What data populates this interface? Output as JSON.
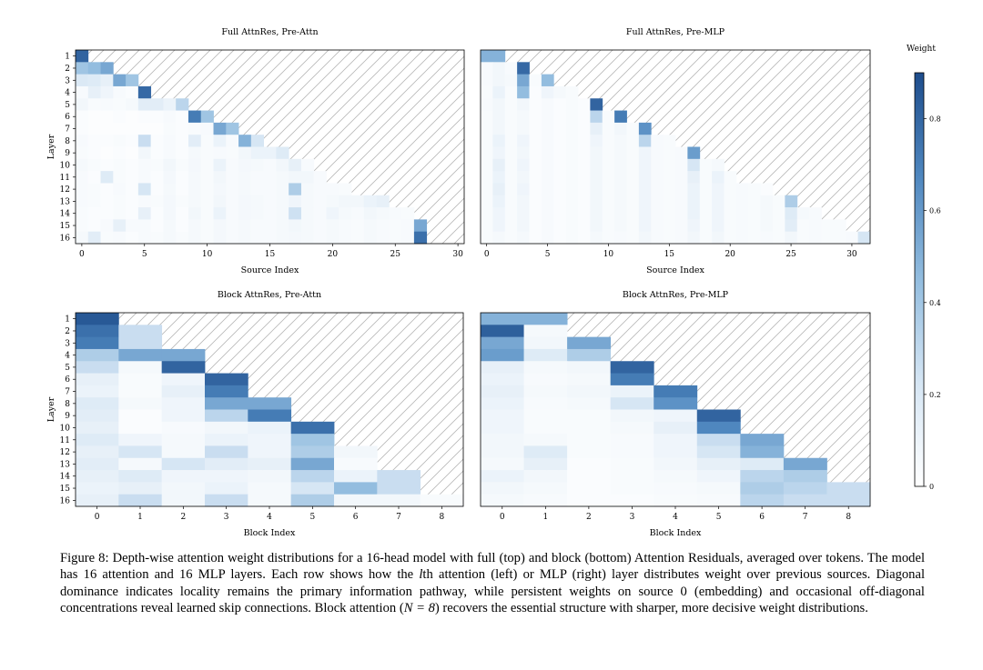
{
  "chart_data": [
    {
      "type": "heatmap",
      "title": "Full AttnRes, Pre-Attn",
      "xlabel": "Source Index",
      "ylabel": "Layer",
      "x_ticks": [
        0,
        5,
        10,
        15,
        20,
        25,
        30
      ],
      "y_ticks": [
        1,
        2,
        3,
        4,
        5,
        6,
        7,
        8,
        9,
        10,
        11,
        12,
        13,
        14,
        15,
        16
      ],
      "ncols": 31,
      "rows": [
        [
          0.9
        ],
        [
          0.45,
          0.5,
          0.6
        ],
        [
          0.22,
          0.2,
          0.15,
          0.6,
          0.45
        ],
        [
          0.05,
          0.15,
          0.1,
          0.05,
          0.03,
          0.88
        ],
        [
          0.08,
          0.04,
          0.05,
          0.04,
          0.06,
          0.18,
          0.18,
          0.12,
          0.35
        ],
        [
          0.03,
          0.02,
          0.02,
          0.03,
          0.02,
          0.03,
          0.03,
          0.05,
          0.03,
          0.8,
          0.45
        ],
        [
          0.03,
          0.02,
          0.02,
          0.02,
          0.02,
          0.02,
          0.02,
          0.04,
          0.03,
          0.04,
          0.05,
          0.6,
          0.45
        ],
        [
          0.05,
          0.03,
          0.03,
          0.04,
          0.03,
          0.3,
          0.03,
          0.05,
          0.03,
          0.18,
          0.04,
          0.12,
          0.05,
          0.55,
          0.25
        ],
        [
          0.04,
          0.03,
          0.02,
          0.03,
          0.02,
          0.08,
          0.03,
          0.05,
          0.03,
          0.06,
          0.04,
          0.05,
          0.04,
          0.08,
          0.12,
          0.12,
          0.2
        ],
        [
          0.06,
          0.04,
          0.03,
          0.04,
          0.03,
          0.05,
          0.04,
          0.08,
          0.04,
          0.07,
          0.04,
          0.12,
          0.05,
          0.07,
          0.06,
          0.05,
          0.08,
          0.15,
          0.05
        ],
        [
          0.05,
          0.03,
          0.2,
          0.04,
          0.03,
          0.05,
          0.03,
          0.07,
          0.03,
          0.06,
          0.04,
          0.08,
          0.05,
          0.06,
          0.05,
          0.05,
          0.06,
          0.08,
          0.08,
          0.05
        ],
        [
          0.05,
          0.04,
          0.03,
          0.05,
          0.03,
          0.25,
          0.03,
          0.06,
          0.03,
          0.06,
          0.04,
          0.07,
          0.05,
          0.06,
          0.05,
          0.05,
          0.06,
          0.4,
          0.06,
          0.05,
          0.05,
          0.04
        ],
        [
          0.05,
          0.04,
          0.03,
          0.04,
          0.03,
          0.05,
          0.04,
          0.07,
          0.04,
          0.06,
          0.04,
          0.08,
          0.05,
          0.07,
          0.06,
          0.05,
          0.06,
          0.1,
          0.06,
          0.05,
          0.06,
          0.08,
          0.08,
          0.12,
          0.15
        ],
        [
          0.04,
          0.03,
          0.03,
          0.04,
          0.03,
          0.15,
          0.03,
          0.07,
          0.03,
          0.08,
          0.04,
          0.12,
          0.05,
          0.07,
          0.06,
          0.05,
          0.06,
          0.28,
          0.06,
          0.05,
          0.1,
          0.06,
          0.05,
          0.08,
          0.06,
          0.05,
          0.04
        ],
        [
          0.04,
          0.03,
          0.05,
          0.15,
          0.05,
          0.05,
          0.03,
          0.06,
          0.03,
          0.06,
          0.04,
          0.07,
          0.05,
          0.06,
          0.05,
          0.05,
          0.06,
          0.08,
          0.06,
          0.05,
          0.06,
          0.05,
          0.04,
          0.06,
          0.05,
          0.04,
          0.05,
          0.6
        ],
        [
          0.06,
          0.18,
          0.04,
          0.05,
          0.03,
          0.05,
          0.04,
          0.06,
          0.04,
          0.06,
          0.04,
          0.07,
          0.05,
          0.06,
          0.05,
          0.05,
          0.06,
          0.07,
          0.06,
          0.05,
          0.06,
          0.05,
          0.04,
          0.06,
          0.05,
          0.04,
          0.05,
          0.85
        ]
      ]
    },
    {
      "type": "heatmap",
      "title": "Full AttnRes, Pre-MLP",
      "xlabel": "Source Index",
      "ylabel": "",
      "x_ticks": [
        0,
        5,
        10,
        15,
        20,
        25,
        30
      ],
      "y_ticks": [],
      "ncols": 32,
      "rows": [
        [
          0.55,
          0.55
        ],
        [
          0.05,
          0.08,
          0.05,
          0.88
        ],
        [
          0.05,
          0.08,
          0.06,
          0.6,
          0.04,
          0.5
        ],
        [
          0.04,
          0.12,
          0.04,
          0.5,
          0.03,
          0.1,
          0.06,
          0.04
        ],
        [
          0.05,
          0.08,
          0.04,
          0.08,
          0.03,
          0.05,
          0.03,
          0.04,
          0.03,
          0.9
        ],
        [
          0.04,
          0.08,
          0.04,
          0.06,
          0.03,
          0.05,
          0.03,
          0.04,
          0.03,
          0.35,
          0.04,
          0.8
        ],
        [
          0.04,
          0.08,
          0.04,
          0.06,
          0.03,
          0.05,
          0.03,
          0.04,
          0.03,
          0.15,
          0.04,
          0.08,
          0.04,
          0.7
        ],
        [
          0.04,
          0.12,
          0.04,
          0.1,
          0.03,
          0.05,
          0.03,
          0.04,
          0.03,
          0.1,
          0.04,
          0.06,
          0.04,
          0.35,
          0.05,
          0.04
        ],
        [
          0.04,
          0.1,
          0.04,
          0.08,
          0.03,
          0.05,
          0.03,
          0.04,
          0.03,
          0.08,
          0.04,
          0.06,
          0.04,
          0.1,
          0.05,
          0.04,
          0.05,
          0.65
        ],
        [
          0.04,
          0.15,
          0.04,
          0.1,
          0.03,
          0.05,
          0.03,
          0.04,
          0.03,
          0.08,
          0.04,
          0.06,
          0.04,
          0.1,
          0.05,
          0.04,
          0.05,
          0.25,
          0.04,
          0.06
        ],
        [
          0.04,
          0.12,
          0.04,
          0.08,
          0.03,
          0.05,
          0.03,
          0.04,
          0.03,
          0.08,
          0.04,
          0.06,
          0.04,
          0.1,
          0.05,
          0.04,
          0.05,
          0.15,
          0.04,
          0.12,
          0.04
        ],
        [
          0.04,
          0.15,
          0.04,
          0.1,
          0.03,
          0.05,
          0.03,
          0.04,
          0.03,
          0.08,
          0.04,
          0.06,
          0.04,
          0.1,
          0.05,
          0.04,
          0.05,
          0.12,
          0.04,
          0.1,
          0.04,
          0.05,
          0.04,
          0.03
        ],
        [
          0.04,
          0.12,
          0.04,
          0.08,
          0.03,
          0.05,
          0.03,
          0.04,
          0.03,
          0.08,
          0.04,
          0.06,
          0.04,
          0.1,
          0.05,
          0.04,
          0.05,
          0.12,
          0.04,
          0.1,
          0.04,
          0.05,
          0.04,
          0.06,
          0.04,
          0.4
        ],
        [
          0.04,
          0.1,
          0.04,
          0.08,
          0.03,
          0.05,
          0.03,
          0.04,
          0.03,
          0.08,
          0.04,
          0.06,
          0.04,
          0.1,
          0.05,
          0.04,
          0.05,
          0.12,
          0.04,
          0.1,
          0.04,
          0.05,
          0.04,
          0.06,
          0.04,
          0.2,
          0.06,
          0.05
        ],
        [
          0.04,
          0.1,
          0.04,
          0.08,
          0.03,
          0.05,
          0.03,
          0.04,
          0.03,
          0.08,
          0.04,
          0.06,
          0.04,
          0.1,
          0.05,
          0.04,
          0.05,
          0.1,
          0.04,
          0.1,
          0.04,
          0.05,
          0.04,
          0.06,
          0.04,
          0.18,
          0.04,
          0.05,
          0.04,
          0.04
        ],
        [
          0.04,
          0.06,
          0.04,
          0.06,
          0.03,
          0.05,
          0.03,
          0.04,
          0.03,
          0.06,
          0.04,
          0.05,
          0.04,
          0.08,
          0.05,
          0.04,
          0.05,
          0.08,
          0.04,
          0.08,
          0.04,
          0.05,
          0.04,
          0.05,
          0.04,
          0.08,
          0.04,
          0.05,
          0.04,
          0.04,
          0.05,
          0.25
        ]
      ]
    },
    {
      "type": "heatmap",
      "title": "Block AttnRes, Pre-Attn",
      "xlabel": "Block Index",
      "ylabel": "Layer",
      "x_ticks": [
        0,
        1,
        2,
        3,
        4,
        5,
        6,
        7,
        8
      ],
      "y_ticks": [
        1,
        2,
        3,
        4,
        5,
        6,
        7,
        8,
        9,
        10,
        11,
        12,
        13,
        14,
        15,
        16
      ],
      "ncols": 9,
      "rows": [
        [
          0.95
        ],
        [
          0.85,
          0.3
        ],
        [
          0.8,
          0.3
        ],
        [
          0.4,
          0.6,
          0.6
        ],
        [
          0.3,
          0.06,
          0.9
        ],
        [
          0.15,
          0.04,
          0.1,
          0.9
        ],
        [
          0.12,
          0.04,
          0.15,
          0.8
        ],
        [
          0.2,
          0.06,
          0.1,
          0.6,
          0.6
        ],
        [
          0.18,
          0.03,
          0.1,
          0.35,
          0.8
        ],
        [
          0.15,
          0.03,
          0.05,
          0.08,
          0.12,
          0.85
        ],
        [
          0.2,
          0.1,
          0.06,
          0.12,
          0.1,
          0.45
        ],
        [
          0.15,
          0.25,
          0.06,
          0.3,
          0.1,
          0.4,
          0.08
        ],
        [
          0.18,
          0.06,
          0.25,
          0.18,
          0.15,
          0.6,
          0.05
        ],
        [
          0.15,
          0.2,
          0.1,
          0.1,
          0.08,
          0.35,
          0.12,
          0.3
        ],
        [
          0.12,
          0.15,
          0.08,
          0.12,
          0.06,
          0.25,
          0.5,
          0.3
        ],
        [
          0.15,
          0.3,
          0.08,
          0.3,
          0.06,
          0.4,
          0.08,
          0.08,
          0.04
        ]
      ]
    },
    {
      "type": "heatmap",
      "title": "Block AttnRes, Pre-MLP",
      "xlabel": "Block Index",
      "ylabel": "",
      "x_ticks": [
        0,
        1,
        2,
        3,
        4,
        5,
        6,
        7,
        8
      ],
      "y_ticks": [],
      "ncols": 9,
      "rows": [
        [
          0.55,
          0.55
        ],
        [
          0.92,
          0.06
        ],
        [
          0.6,
          0.08,
          0.6
        ],
        [
          0.65,
          0.2,
          0.4
        ],
        [
          0.15,
          0.06,
          0.08,
          0.9
        ],
        [
          0.12,
          0.05,
          0.06,
          0.8
        ],
        [
          0.15,
          0.06,
          0.08,
          0.12,
          0.8
        ],
        [
          0.12,
          0.05,
          0.06,
          0.25,
          0.7
        ],
        [
          0.1,
          0.04,
          0.04,
          0.08,
          0.1,
          0.9
        ],
        [
          0.1,
          0.04,
          0.04,
          0.06,
          0.15,
          0.75
        ],
        [
          0.08,
          0.06,
          0.04,
          0.05,
          0.1,
          0.3,
          0.6
        ],
        [
          0.08,
          0.2,
          0.04,
          0.05,
          0.1,
          0.25,
          0.55
        ],
        [
          0.06,
          0.15,
          0.03,
          0.04,
          0.08,
          0.15,
          0.2,
          0.6
        ],
        [
          0.12,
          0.08,
          0.03,
          0.04,
          0.06,
          0.1,
          0.35,
          0.4
        ],
        [
          0.08,
          0.06,
          0.03,
          0.04,
          0.05,
          0.06,
          0.4,
          0.35,
          0.3
        ],
        [
          0.06,
          0.05,
          0.03,
          0.03,
          0.04,
          0.05,
          0.35,
          0.3,
          0.3
        ]
      ]
    }
  ],
  "colorbar": {
    "label": "Weight",
    "ticks": [
      "0",
      "0.2",
      "0.4",
      "0.6",
      "0.8"
    ],
    "min_color": "#ffffff",
    "max_color": "#1e4d8c"
  },
  "caption": {
    "fig_label": "Figure 8:",
    "text_1": "Depth-wise attention weight distributions for a 16-head model with full (top) and block (bottom) Attention Residuals, averaged over tokens. The model has 16 attention and 16 MLP layers. Each row shows how the ",
    "text_italic": "l",
    "text_2": "th attention (left) or MLP (right) layer distributes weight over previous sources. Diagonal dominance indicates locality remains the primary information pathway, while persistent weights on source 0 (embedding) and occasional off-diagonal concentrations reveal learned skip connections. Block attention (",
    "text_math": "N = 8",
    "text_3": ") recovers the essential structure with sharper, more decisive weight distributions."
  }
}
